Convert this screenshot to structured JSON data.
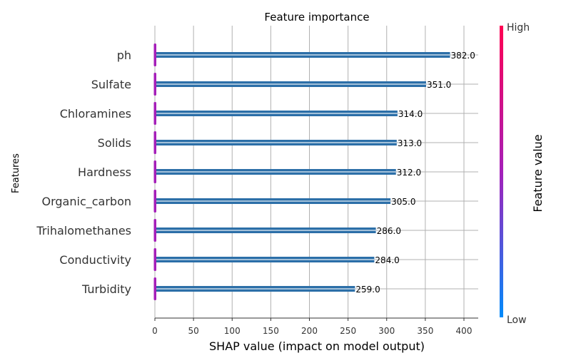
{
  "chart_data": {
    "type": "bar",
    "orientation": "horizontal",
    "title": "Feature importance",
    "xlabel": "SHAP value (impact on model output)",
    "ylabel": "Features",
    "xlim": [
      0,
      420
    ],
    "xticks": [
      0,
      50,
      100,
      150,
      200,
      250,
      300,
      350,
      400
    ],
    "categories": [
      "ph",
      "Sulfate",
      "Chloramines",
      "Solids",
      "Hardness",
      "Organic_carbon",
      "Trihalomethanes",
      "Conductivity",
      "Turbidity"
    ],
    "values": [
      382.0,
      351.0,
      314.0,
      313.0,
      312.0,
      305.0,
      286.0,
      284.0,
      259.0
    ],
    "value_labels": [
      "382.0",
      "351.0",
      "314.0",
      "313.0",
      "312.0",
      "305.0",
      "286.0",
      "284.0",
      "259.0"
    ],
    "grid": true,
    "bar_color": "#2c6fa8",
    "colorbar": {
      "label": "Feature value",
      "high_label": "High",
      "low_label": "Low",
      "high_color": "#ff0052",
      "mid_color": "#a51fb9",
      "low_color": "#008bfb"
    }
  }
}
